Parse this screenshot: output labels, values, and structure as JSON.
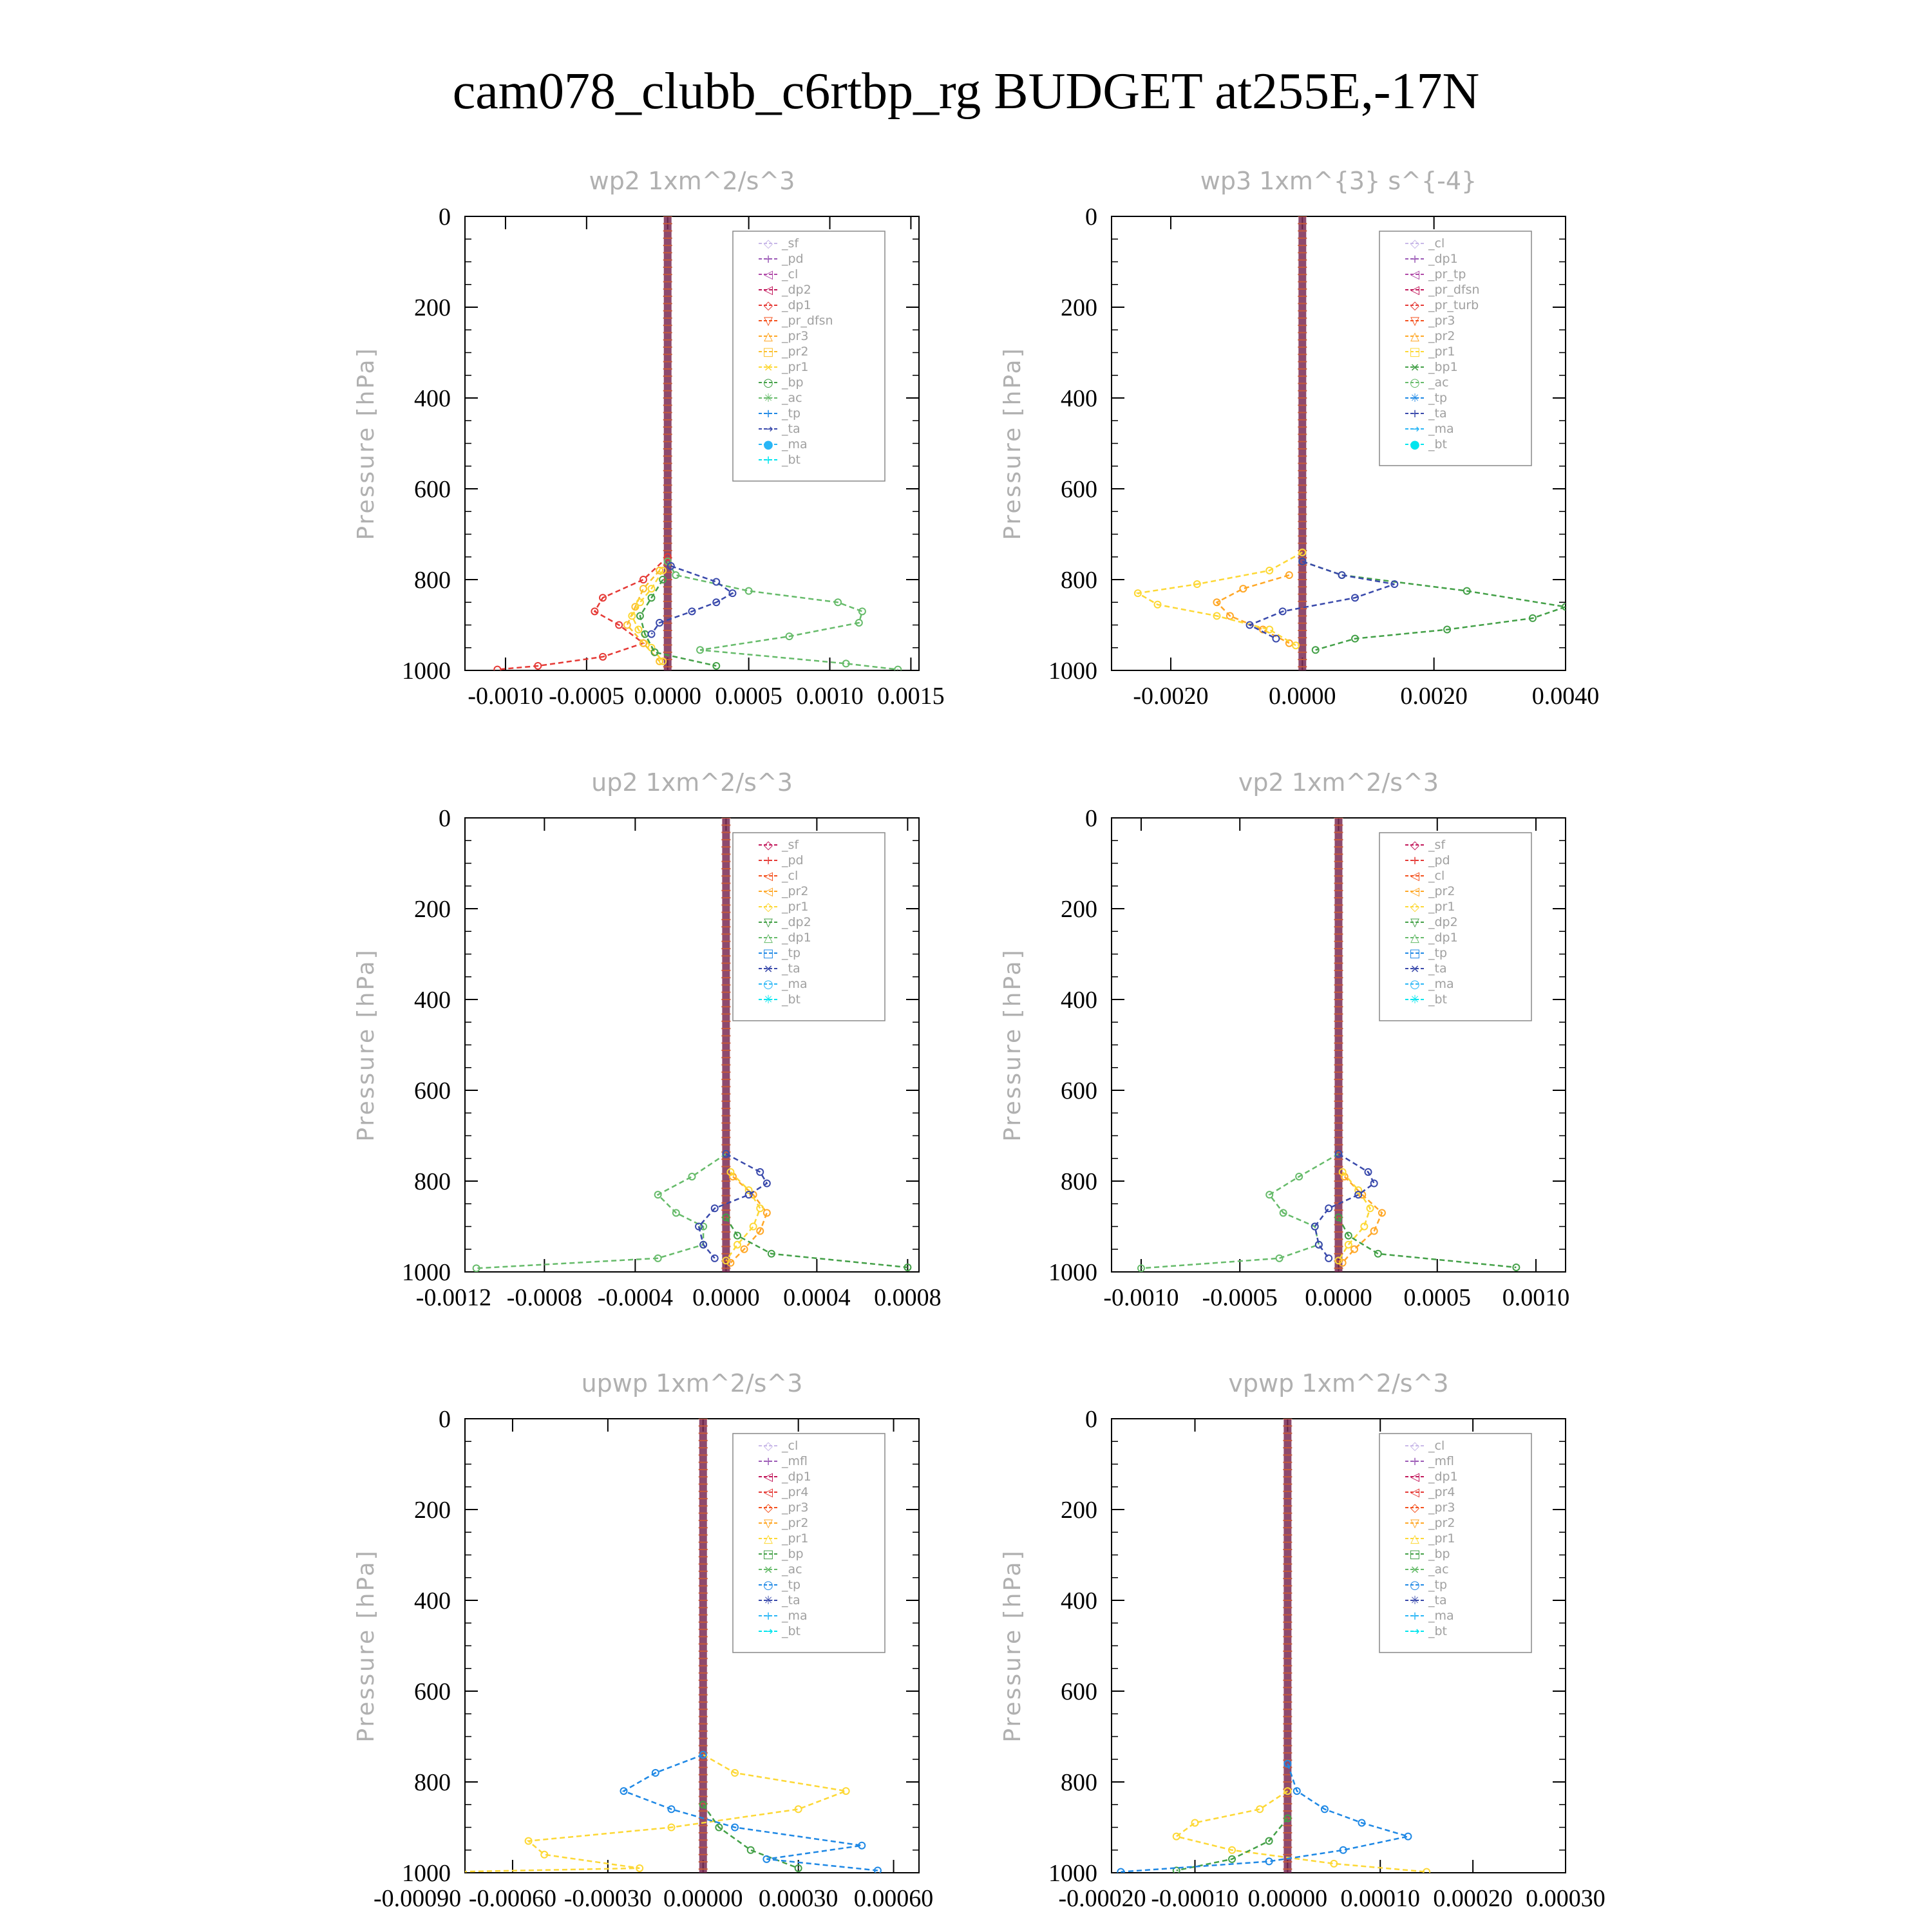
{
  "title": "cam078_clubb_c6rtbp_rg  BUDGET at255E,-17N",
  "chart_data": [
    {
      "type": "line",
      "title": "wp2   1xm^2/s^3",
      "ylabel": "Pressure [hPa]",
      "ylim": [
        1000,
        0
      ],
      "yticks": [
        0,
        200,
        400,
        600,
        800,
        1000
      ],
      "xlim": [
        -0.00125,
        0.00155
      ],
      "xticks": [
        -0.001,
        -0.0005,
        0.0,
        0.0005,
        0.001,
        0.0015
      ],
      "xtick_labels": [
        "-0.0010",
        "-0.0005",
        "0.0000",
        "0.0005",
        "0.0010",
        "0.0015"
      ],
      "legend_placement": "top-right",
      "series": [
        {
          "name": "_sf",
          "color": "#c8b8e8"
        },
        {
          "name": "_pd",
          "color": "#9b59b6"
        },
        {
          "name": "_cl",
          "color": "#b04aa8"
        },
        {
          "name": "_dp2",
          "color": "#c2185b"
        },
        {
          "name": "_dp1",
          "color": "#e53935",
          "pressure": [
            750,
            800,
            840,
            870,
            900,
            940,
            970,
            990,
            998
          ],
          "values": [
            0.0,
            -0.00015,
            -0.0004,
            -0.00045,
            -0.0003,
            -0.00015,
            -0.0004,
            -0.0008,
            -0.00105
          ]
        },
        {
          "name": "_pr_dfsn",
          "color": "#f4511e"
        },
        {
          "name": "_pr3",
          "color": "#ffa726"
        },
        {
          "name": "_pr2",
          "color": "#fbc02d",
          "pressure": [
            780,
            820,
            860,
            900,
            940,
            980
          ],
          "values": [
            -5e-05,
            -0.00015,
            -0.0002,
            -0.00025,
            -0.00015,
            -5e-05
          ]
        },
        {
          "name": "_pr1",
          "color": "#fdd835",
          "pressure": [
            780,
            820,
            850,
            880,
            910,
            950,
            980
          ],
          "values": [
            -3e-05,
            -0.0001,
            -0.00017,
            -0.00022,
            -0.00018,
            -0.0001,
            -3e-05
          ]
        },
        {
          "name": "_bp",
          "color": "#43a047",
          "pressure": [
            800,
            840,
            880,
            920,
            960,
            990
          ],
          "values": [
            -3e-05,
            -0.0001,
            -0.00017,
            -0.00014,
            -8e-05,
            0.0003
          ]
        },
        {
          "name": "_ac",
          "color": "#66bb6a",
          "pressure": [
            760,
            790,
            825,
            850,
            870,
            895,
            925,
            955,
            985,
            998
          ],
          "values": [
            0.0,
            5e-05,
            0.0005,
            0.00105,
            0.0012,
            0.00118,
            0.00075,
            0.0002,
            0.0011,
            0.00142
          ]
        },
        {
          "name": "_tp",
          "color": "#1e88e5"
        },
        {
          "name": "_ta",
          "color": "#3949ab",
          "pressure": [
            770,
            805,
            830,
            850,
            870,
            895,
            920
          ],
          "values": [
            2e-05,
            0.0003,
            0.0004,
            0.0003,
            0.00015,
            -5e-05,
            -0.0001
          ]
        },
        {
          "name": "_ma",
          "color": "#29b6f6"
        },
        {
          "name": "_bt",
          "color": "#00e5ee"
        }
      ]
    },
    {
      "type": "line",
      "title": "wp3   1xm^{3} s^{-4}",
      "ylabel": "Pressure [hPa]",
      "ylim": [
        1000,
        0
      ],
      "yticks": [
        0,
        200,
        400,
        600,
        800,
        1000
      ],
      "xlim": [
        -0.0029,
        0.004
      ],
      "xticks": [
        -0.002,
        0.0,
        0.002,
        0.004
      ],
      "xtick_labels": [
        "-0.0020",
        "0.0000",
        "0.0020",
        "0.0040"
      ],
      "legend_placement": "top-right",
      "series": [
        {
          "name": "_cl",
          "color": "#c8b8e8"
        },
        {
          "name": "_dp1",
          "color": "#9b59b6"
        },
        {
          "name": "_pr_tp",
          "color": "#b04aa8"
        },
        {
          "name": "_pr_dfsn",
          "color": "#c2185b"
        },
        {
          "name": "_pr_turb",
          "color": "#e53935"
        },
        {
          "name": "_pr3",
          "color": "#f4511e"
        },
        {
          "name": "_pr2",
          "color": "#ffa726",
          "pressure": [
            790,
            820,
            850,
            880,
            910,
            940
          ],
          "values": [
            -0.0002,
            -0.0009,
            -0.0013,
            -0.0011,
            -0.0006,
            -0.0002
          ]
        },
        {
          "name": "_pr1",
          "color": "#fdd835",
          "pressure": [
            740,
            780,
            810,
            830,
            855,
            880,
            910,
            945
          ],
          "values": [
            0.0,
            -0.0005,
            -0.0016,
            -0.0025,
            -0.0022,
            -0.0013,
            -0.0005,
            -0.0001
          ]
        },
        {
          "name": "_bp1",
          "color": "#43a047",
          "pressure": [
            760,
            790,
            825,
            860,
            885,
            910,
            930,
            955
          ],
          "values": [
            0.0,
            0.0006,
            0.0025,
            0.004,
            0.0035,
            0.0022,
            0.0008,
            0.0002
          ]
        },
        {
          "name": "_ac",
          "color": "#66bb6a"
        },
        {
          "name": "_tp",
          "color": "#1e88e5"
        },
        {
          "name": "_ta",
          "color": "#3949ab",
          "pressure": [
            760,
            790,
            810,
            840,
            870,
            900,
            930
          ],
          "values": [
            0.0,
            0.0006,
            0.0014,
            0.0008,
            -0.0003,
            -0.0008,
            -0.0004
          ]
        },
        {
          "name": "_ma",
          "color": "#29b6f6"
        },
        {
          "name": "_bt",
          "color": "#00e5ee"
        }
      ]
    },
    {
      "type": "line",
      "title": "up2   1xm^2/s^3",
      "ylabel": "Pressure [hPa]",
      "ylim": [
        1000,
        0
      ],
      "yticks": [
        0,
        200,
        400,
        600,
        800,
        1000
      ],
      "xlim": [
        -0.00115,
        0.00085
      ],
      "xticks": [
        -0.0012,
        -0.0008,
        -0.0004,
        0.0,
        0.0004,
        0.0008
      ],
      "xtick_labels": [
        "-0.0012",
        "-0.0008",
        "-0.0004",
        "0.0000",
        "0.0004",
        "0.0008"
      ],
      "legend_placement": "top-right",
      "series": [
        {
          "name": "_sf",
          "color": "#c2185b"
        },
        {
          "name": "_pd",
          "color": "#e53935"
        },
        {
          "name": "_cl",
          "color": "#f4511e"
        },
        {
          "name": "_pr2",
          "color": "#ffa726",
          "pressure": [
            790,
            830,
            870,
            910,
            950,
            980
          ],
          "values": [
            3e-05,
            0.00012,
            0.00018,
            0.00015,
            8e-05,
            2e-05
          ]
        },
        {
          "name": "_pr1",
          "color": "#fdd835",
          "pressure": [
            780,
            820,
            860,
            900,
            940,
            975
          ],
          "values": [
            2e-05,
            0.0001,
            0.00015,
            0.00012,
            5e-05,
            0.0
          ]
        },
        {
          "name": "_dp2",
          "color": "#43a047",
          "pressure": [
            880,
            920,
            960,
            990
          ],
          "values": [
            0.0,
            5e-05,
            0.0002,
            0.0008
          ]
        },
        {
          "name": "_dp1",
          "color": "#66bb6a",
          "pressure": [
            740,
            790,
            830,
            870,
            900,
            940,
            970,
            992
          ],
          "values": [
            0.0,
            -0.00015,
            -0.0003,
            -0.00022,
            -0.0001,
            -0.0001,
            -0.0003,
            -0.0011
          ]
        },
        {
          "name": "_tp",
          "color": "#1e88e5"
        },
        {
          "name": "_ta",
          "color": "#3949ab",
          "pressure": [
            740,
            780,
            805,
            830,
            860,
            900,
            940,
            970
          ],
          "values": [
            0.0,
            0.00015,
            0.00018,
            0.0001,
            -5e-05,
            -0.00012,
            -0.0001,
            -5e-05
          ]
        },
        {
          "name": "_ma",
          "color": "#29b6f6"
        },
        {
          "name": "_bt",
          "color": "#00e5ee"
        }
      ]
    },
    {
      "type": "line",
      "title": "vp2   1xm^2/s^3",
      "ylabel": "Pressure [hPa]",
      "ylim": [
        1000,
        0
      ],
      "yticks": [
        0,
        200,
        400,
        600,
        800,
        1000
      ],
      "xlim": [
        -0.00115,
        0.00115
      ],
      "xticks": [
        -0.001,
        -0.0005,
        0.0,
        0.0005,
        0.001
      ],
      "xtick_labels": [
        "-0.0010",
        "-0.0005",
        "0.0000",
        "0.0005",
        "0.0010"
      ],
      "legend_placement": "top-right",
      "series": [
        {
          "name": "_sf",
          "color": "#c2185b"
        },
        {
          "name": "_pd",
          "color": "#e53935"
        },
        {
          "name": "_cl",
          "color": "#f4511e"
        },
        {
          "name": "_pr2",
          "color": "#ffa726",
          "pressure": [
            790,
            830,
            870,
            910,
            950,
            980
          ],
          "values": [
            3e-05,
            0.00012,
            0.00022,
            0.00018,
            8e-05,
            2e-05
          ]
        },
        {
          "name": "_pr1",
          "color": "#fdd835",
          "pressure": [
            780,
            820,
            860,
            900,
            940,
            975
          ],
          "values": [
            2e-05,
            0.0001,
            0.00016,
            0.00013,
            5e-05,
            0.0
          ]
        },
        {
          "name": "_dp2",
          "color": "#43a047",
          "pressure": [
            880,
            920,
            960,
            990
          ],
          "values": [
            0.0,
            5e-05,
            0.0002,
            0.0009
          ]
        },
        {
          "name": "_dp1",
          "color": "#66bb6a",
          "pressure": [
            740,
            790,
            830,
            870,
            900,
            940,
            970,
            992
          ],
          "values": [
            0.0,
            -0.0002,
            -0.00035,
            -0.00028,
            -0.00012,
            -0.0001,
            -0.0003,
            -0.001
          ]
        },
        {
          "name": "_tp",
          "color": "#1e88e5"
        },
        {
          "name": "_ta",
          "color": "#3949ab",
          "pressure": [
            740,
            780,
            805,
            830,
            860,
            900,
            940,
            970
          ],
          "values": [
            0.0,
            0.00015,
            0.00018,
            0.0001,
            -5e-05,
            -0.00012,
            -0.0001,
            -5e-05
          ]
        },
        {
          "name": "_ma",
          "color": "#29b6f6"
        },
        {
          "name": "_bt",
          "color": "#00e5ee"
        }
      ]
    },
    {
      "type": "line",
      "title": "upwp   1xm^2/s^3",
      "ylabel": "Pressure [hPa]",
      "ylim": [
        1000,
        0
      ],
      "yticks": [
        0,
        200,
        400,
        600,
        800,
        1000
      ],
      "xlim": [
        -0.00075,
        0.00068
      ],
      "xticks": [
        -0.0009,
        -0.0006,
        -0.0003,
        0.0,
        0.0003,
        0.0006
      ],
      "xtick_labels": [
        "-0.00090",
        "-0.00060",
        "-0.00030",
        "0.00000",
        "0.00030",
        "0.00060"
      ],
      "legend_placement": "top-right",
      "series": [
        {
          "name": "_cl",
          "color": "#c8b8e8"
        },
        {
          "name": "_mfl",
          "color": "#9b59b6"
        },
        {
          "name": "_dp1",
          "color": "#c2185b"
        },
        {
          "name": "_pr4",
          "color": "#e53935"
        },
        {
          "name": "_pr3",
          "color": "#f4511e"
        },
        {
          "name": "_pr2",
          "color": "#ffa726"
        },
        {
          "name": "_pr1",
          "color": "#fdd835",
          "pressure": [
            740,
            780,
            820,
            860,
            900,
            930,
            960,
            990,
            998
          ],
          "values": [
            0.0,
            0.0001,
            0.00045,
            0.0003,
            -0.0001,
            -0.00055,
            -0.0005,
            -0.0002,
            -0.0008
          ]
        },
        {
          "name": "_bp",
          "color": "#43a047",
          "pressure": [
            850,
            900,
            950,
            990
          ],
          "values": [
            0.0,
            5e-05,
            0.00015,
            0.0003
          ]
        },
        {
          "name": "_ac",
          "color": "#66bb6a"
        },
        {
          "name": "_tp",
          "color": "#1e88e5",
          "pressure": [
            740,
            780,
            820,
            860,
            900,
            940,
            970,
            995
          ],
          "values": [
            0.0,
            -0.00015,
            -0.00025,
            -0.0001,
            0.0001,
            0.0005,
            0.0002,
            0.00055
          ]
        },
        {
          "name": "_ta",
          "color": "#3949ab"
        },
        {
          "name": "_ma",
          "color": "#29b6f6"
        },
        {
          "name": "_bt",
          "color": "#00e5ee"
        }
      ]
    },
    {
      "type": "line",
      "title": "vpwp   1xm^2/s^3",
      "ylabel": "Pressure [hPa]",
      "ylim": [
        1000,
        0
      ],
      "yticks": [
        0,
        200,
        400,
        600,
        800,
        1000
      ],
      "xlim": [
        -0.00019,
        0.0003
      ],
      "xticks": [
        -0.0002,
        -0.0001,
        0.0,
        0.0001,
        0.0002,
        0.0003
      ],
      "xtick_labels": [
        "-0.00020",
        "-0.00010",
        "0.00000",
        "0.00010",
        "0.00020",
        "0.00030"
      ],
      "legend_placement": "top-right",
      "series": [
        {
          "name": "_cl",
          "color": "#c8b8e8"
        },
        {
          "name": "_mfl",
          "color": "#9b59b6"
        },
        {
          "name": "_dp1",
          "color": "#c2185b"
        },
        {
          "name": "_pr4",
          "color": "#e53935"
        },
        {
          "name": "_pr3",
          "color": "#f4511e"
        },
        {
          "name": "_pr2",
          "color": "#ffa726"
        },
        {
          "name": "_pr1",
          "color": "#fdd835",
          "pressure": [
            820,
            860,
            890,
            920,
            950,
            980,
            998
          ],
          "values": [
            0.0,
            -3e-05,
            -0.0001,
            -0.00012,
            -6e-05,
            5e-05,
            0.00015
          ]
        },
        {
          "name": "_bp",
          "color": "#43a047",
          "pressure": [
            880,
            930,
            970,
            995
          ],
          "values": [
            0.0,
            -2e-05,
            -6e-05,
            -0.00012
          ]
        },
        {
          "name": "_ac",
          "color": "#66bb6a"
        },
        {
          "name": "_tp",
          "color": "#1e88e5",
          "pressure": [
            760,
            820,
            860,
            890,
            920,
            950,
            975,
            998
          ],
          "values": [
            0.0,
            1e-05,
            4e-05,
            8e-05,
            0.00013,
            6e-05,
            -2e-05,
            -0.00018
          ]
        },
        {
          "name": "_ta",
          "color": "#3949ab"
        },
        {
          "name": "_ma",
          "color": "#29b6f6"
        },
        {
          "name": "_bt",
          "color": "#00e5ee"
        }
      ]
    }
  ]
}
